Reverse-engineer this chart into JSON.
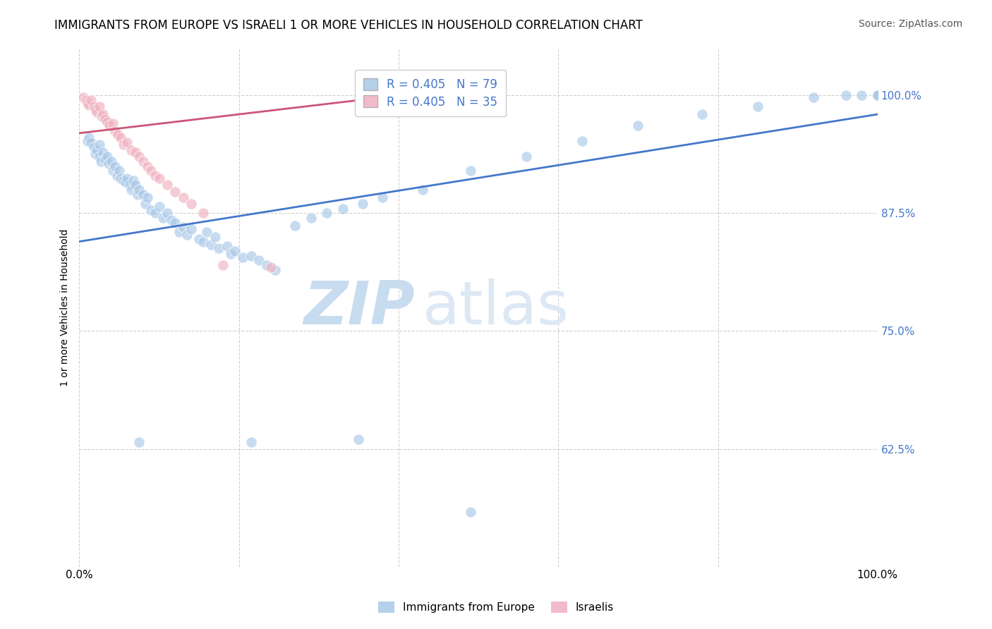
{
  "title": "IMMIGRANTS FROM EUROPE VS ISRAELI 1 OR MORE VEHICLES IN HOUSEHOLD CORRELATION CHART",
  "source": "Source: ZipAtlas.com",
  "ylabel": "1 or more Vehicles in Household",
  "ytick_labels": [
    "100.0%",
    "87.5%",
    "75.0%",
    "62.5%"
  ],
  "ytick_values": [
    1.0,
    0.875,
    0.75,
    0.625
  ],
  "xlim": [
    0.0,
    1.0
  ],
  "ylim": [
    0.5,
    1.05
  ],
  "watermark_zip": "ZIP",
  "watermark_atlas": "atlas",
  "legend_line1": "R = 0.405   N = 79",
  "legend_line2": "R = 0.405   N = 35",
  "legend_label_blue": "Immigrants from Europe",
  "legend_label_pink": "Israelis",
  "blue_x": [
    0.01,
    0.012,
    0.015,
    0.018,
    0.02,
    0.022,
    0.025,
    0.025,
    0.027,
    0.03,
    0.032,
    0.035,
    0.037,
    0.04,
    0.042,
    0.045,
    0.047,
    0.05,
    0.052,
    0.055,
    0.058,
    0.06,
    0.063,
    0.065,
    0.068,
    0.07,
    0.073,
    0.075,
    0.08,
    0.083,
    0.085,
    0.09,
    0.095,
    0.1,
    0.105,
    0.11,
    0.115,
    0.12,
    0.125,
    0.13,
    0.135,
    0.14,
    0.15,
    0.155,
    0.16,
    0.165,
    0.17,
    0.175,
    0.185,
    0.19,
    0.195,
    0.205,
    0.215,
    0.225,
    0.235,
    0.245,
    0.27,
    0.29,
    0.31,
    0.33,
    0.355,
    0.38,
    0.43,
    0.49,
    0.56,
    0.63,
    0.7,
    0.78,
    0.85,
    0.92,
    0.96,
    0.98,
    1.0,
    1.0,
    1.0,
    0.075,
    0.215,
    0.35,
    0.49
  ],
  "blue_y": [
    0.952,
    0.955,
    0.95,
    0.945,
    0.938,
    0.942,
    0.948,
    0.935,
    0.93,
    0.94,
    0.932,
    0.935,
    0.928,
    0.93,
    0.92,
    0.925,
    0.915,
    0.92,
    0.912,
    0.91,
    0.908,
    0.912,
    0.905,
    0.9,
    0.91,
    0.905,
    0.895,
    0.9,
    0.895,
    0.885,
    0.892,
    0.878,
    0.875,
    0.882,
    0.87,
    0.875,
    0.868,
    0.865,
    0.855,
    0.86,
    0.852,
    0.858,
    0.848,
    0.845,
    0.855,
    0.842,
    0.85,
    0.838,
    0.84,
    0.832,
    0.835,
    0.828,
    0.83,
    0.825,
    0.82,
    0.815,
    0.862,
    0.87,
    0.875,
    0.88,
    0.885,
    0.892,
    0.9,
    0.92,
    0.935,
    0.952,
    0.968,
    0.98,
    0.988,
    0.998,
    1.0,
    1.0,
    1.0,
    1.0,
    1.0,
    0.632,
    0.632,
    0.635,
    0.558
  ],
  "pink_x": [
    0.005,
    0.008,
    0.01,
    0.012,
    0.015,
    0.018,
    0.02,
    0.022,
    0.025,
    0.028,
    0.03,
    0.032,
    0.035,
    0.038,
    0.042,
    0.045,
    0.048,
    0.052,
    0.055,
    0.06,
    0.065,
    0.07,
    0.075,
    0.08,
    0.085,
    0.09,
    0.095,
    0.1,
    0.11,
    0.12,
    0.13,
    0.14,
    0.155,
    0.18,
    0.24
  ],
  "pink_y": [
    0.998,
    0.995,
    0.992,
    0.99,
    0.995,
    0.988,
    0.985,
    0.982,
    0.988,
    0.978,
    0.98,
    0.975,
    0.972,
    0.968,
    0.97,
    0.962,
    0.958,
    0.955,
    0.948,
    0.95,
    0.942,
    0.94,
    0.935,
    0.93,
    0.925,
    0.92,
    0.915,
    0.912,
    0.905,
    0.898,
    0.892,
    0.885,
    0.875,
    0.82,
    0.818
  ],
  "blue_line_x": [
    0.0,
    1.0
  ],
  "blue_line_y": [
    0.845,
    0.98
  ],
  "pink_line_x": [
    0.0,
    0.5
  ],
  "pink_line_y": [
    0.96,
    1.01
  ],
  "blue_color": "#a8c8e8",
  "pink_color": "#f0b0c0",
  "blue_line_color": "#4477cc",
  "pink_line_color": "#cc5577",
  "dot_size": 120,
  "dot_alpha": 0.65,
  "title_fontsize": 12,
  "axis_label_fontsize": 10,
  "tick_fontsize": 11,
  "watermark_fontsize_zip": 62,
  "watermark_fontsize_atlas": 62,
  "watermark_color_zip": "#c8dcf0",
  "watermark_color_atlas": "#dce8f4",
  "source_fontsize": 10,
  "legend_fontsize": 12
}
